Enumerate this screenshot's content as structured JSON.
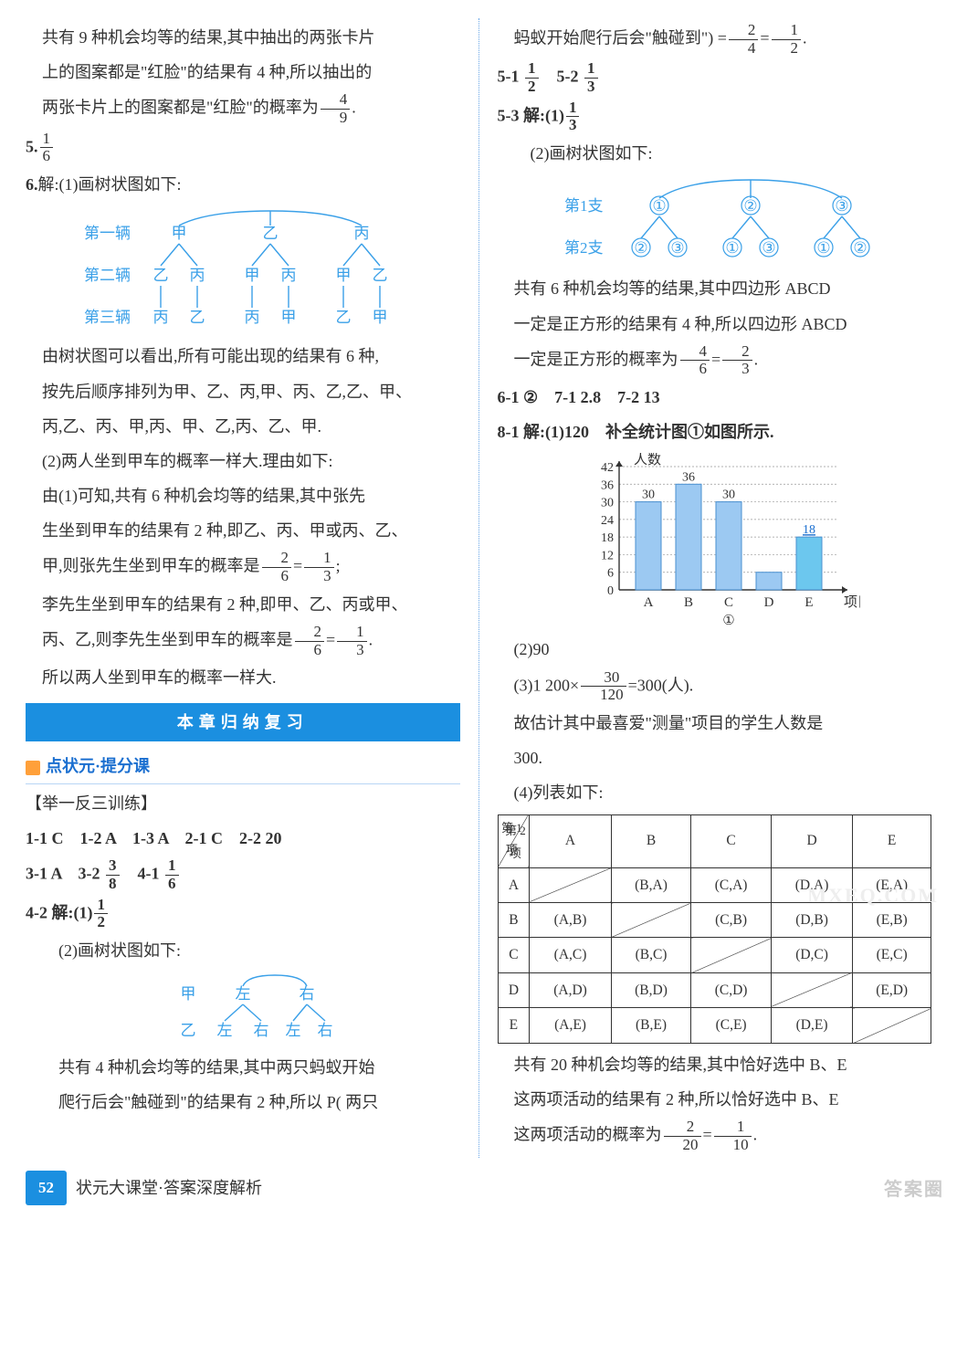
{
  "left": {
    "p1": "共有 9 种机会均等的结果,其中抽出的两张卡片",
    "p2": "上的图案都是\"红脸\"的结果有 4 种,所以抽出的",
    "p3a": "两张卡片上的图案都是\"红脸\"的概率为",
    "p3f": {
      "n": "4",
      "d": "9"
    },
    "p3b": ".",
    "q5_lbl": "5.",
    "q5f": {
      "n": "1",
      "d": "6"
    },
    "q6_lbl": "6.",
    "q6_txt": "解:(1)画树状图如下:",
    "tree1": {
      "stroke": "#3aa0e8",
      "text_color": "#3aa0e8",
      "fontsize": 17,
      "rows": [
        {
          "label": "第一辆",
          "items": [
            "甲",
            "乙",
            "丙"
          ]
        },
        {
          "label": "第二辆",
          "items": [
            "乙",
            "丙",
            "甲",
            "丙",
            "甲",
            "乙"
          ]
        },
        {
          "label": "第三辆",
          "items": [
            "丙",
            "乙",
            "丙",
            "甲",
            "乙",
            "甲"
          ]
        }
      ]
    },
    "p4": "由树状图可以看出,所有可能出现的结果有 6 种,",
    "p5": "按先后顺序排列为甲、乙、丙,甲、丙、乙,乙、甲、",
    "p6": "丙,乙、丙、甲,丙、甲、乙,丙、乙、甲.",
    "p7": "(2)两人坐到甲车的概率一样大.理由如下:",
    "p8": "由(1)可知,共有 6 种机会均等的结果,其中张先",
    "p9": "生坐到甲车的结果有 2 种,即乙、丙、甲或丙、乙、",
    "p10a": "甲,则张先生坐到甲车的概率是",
    "p10f1": {
      "n": "2",
      "d": "6"
    },
    "eq": "=",
    "p10f2": {
      "n": "1",
      "d": "3"
    },
    "semi": ";",
    "p11": "李先生坐到甲车的结果有 2 种,即甲、乙、丙或甲、",
    "p12a": "丙、乙,则李先生坐到甲车的概率是",
    "p12f1": {
      "n": "2",
      "d": "6"
    },
    "p12f2": {
      "n": "1",
      "d": "3"
    },
    "dot": ".",
    "p13": "所以两人坐到甲车的概率一样大.",
    "banner": "本章归纳复习",
    "sect": "点状元·提分课",
    "train_hdr": "【举一反三训练】",
    "row1": "1-1 C　1-2 A　1-3 A　2-1 C　2-2 20",
    "row2a": "3-1 A　3-2 ",
    "row2f1": {
      "n": "3",
      "d": "8"
    },
    "row2b": "　4-1 ",
    "row2f2": {
      "n": "1",
      "d": "6"
    },
    "row3a": "4-2 解:(1)",
    "row3f": {
      "n": "1",
      "d": "2"
    },
    "row3b": "(2)画树状图如下:",
    "tree2": {
      "stroke": "#3aa0e8",
      "text_color": "#3aa0e8",
      "fontsize": 17,
      "rows": [
        {
          "label": "甲",
          "items": [
            "左",
            "右"
          ]
        },
        {
          "label": "乙",
          "items": [
            "左",
            "右",
            "左",
            "右"
          ]
        }
      ]
    },
    "p14": "共有 4 种机会均等的结果,其中两只蚂蚁开始",
    "p15": "爬行后会\"触碰到\"的结果有 2 种,所以 P( 两只"
  },
  "right": {
    "p1a": "蚂蚁开始爬行后会\"触碰到\") =",
    "p1f1": {
      "n": "2",
      "d": "4"
    },
    "eq": "=",
    "p1f2": {
      "n": "1",
      "d": "2"
    },
    "dot": ".",
    "r1a": "5-1 ",
    "r1f1": {
      "n": "1",
      "d": "2"
    },
    "r1b": "　5-2 ",
    "r1f2": {
      "n": "1",
      "d": "3"
    },
    "r2a": "5-3 解:(1)",
    "r2f": {
      "n": "1",
      "d": "3"
    },
    "r2b": "(2)画树状图如下:",
    "tree3": {
      "stroke": "#3aa0e8",
      "text_color": "#3aa0e8",
      "fontsize": 17,
      "rows": [
        {
          "label": "第1支",
          "items": [
            "①",
            "②",
            "③"
          ]
        },
        {
          "label": "第2支",
          "items": [
            "②",
            "③",
            "①",
            "③",
            "①",
            "②"
          ]
        }
      ]
    },
    "p2": "共有 6 种机会均等的结果,其中四边形 ABCD",
    "p3": "一定是正方形的结果有 4 种,所以四边形 ABCD",
    "p4a": "一定是正方形的概率为",
    "p4f1": {
      "n": "4",
      "d": "6"
    },
    "p4f2": {
      "n": "2",
      "d": "3"
    },
    "r3": "6-1 ②　7-1 2.8　7-2 13",
    "r4": "8-1 解:(1)120　补全统计图①如图所示.",
    "chart": {
      "title_y": "人数",
      "yticks": [
        0,
        6,
        12,
        18,
        24,
        30,
        36,
        42
      ],
      "cats": [
        "A",
        "B",
        "C",
        "D",
        "E"
      ],
      "vals": [
        30,
        36,
        30,
        6,
        18
      ],
      "fill": "#9cc9f2",
      "stroke": "#4a90d0",
      "grid": "#333",
      "highlight": "#6cc7ee",
      "xlabel": "项目",
      "caption": "①",
      "annot": [
        "30",
        "36",
        "30",
        "",
        "18"
      ]
    },
    "p5": "(2)90",
    "p6a": "(3)1 200×",
    "p6f": {
      "n": "30",
      "d": "120"
    },
    "p6b": "=300(人).",
    "p7": "故估计其中最喜爱\"测量\"项目的学生人数是",
    "p8": "300.",
    "p9": "(4)列表如下:",
    "table": {
      "diag_tl": "第 1 项",
      "diag_bl": "第 2 项",
      "heads": [
        "A",
        "B",
        "C",
        "D",
        "E"
      ],
      "rows": [
        {
          "h": "A",
          "cells": [
            "",
            "(B,A)",
            "(C,A)",
            "(D,A)",
            "(E,A)"
          ]
        },
        {
          "h": "B",
          "cells": [
            "(A,B)",
            "",
            "(C,B)",
            "(D,B)",
            "(E,B)"
          ]
        },
        {
          "h": "C",
          "cells": [
            "(A,C)",
            "(B,C)",
            "",
            "(D,C)",
            "(E,C)"
          ]
        },
        {
          "h": "D",
          "cells": [
            "(A,D)",
            "(B,D)",
            "(C,D)",
            "",
            "(E,D)"
          ]
        },
        {
          "h": "E",
          "cells": [
            "(A,E)",
            "(B,E)",
            "(C,E)",
            "(D,E)",
            ""
          ]
        }
      ]
    },
    "p10": "共有 20 种机会均等的结果,其中恰好选中 B、E",
    "p11": "这两项活动的结果有 2 种,所以恰好选中 B、E",
    "p12a": "这两项活动的概率为",
    "p12f1": {
      "n": "2",
      "d": "20"
    },
    "p12f2": {
      "n": "1",
      "d": "10"
    }
  },
  "footer": {
    "page": "52",
    "title": "状元大课堂·答案深度解析"
  },
  "watermark": "答案圈",
  "wm2": "MXEQ.COM"
}
